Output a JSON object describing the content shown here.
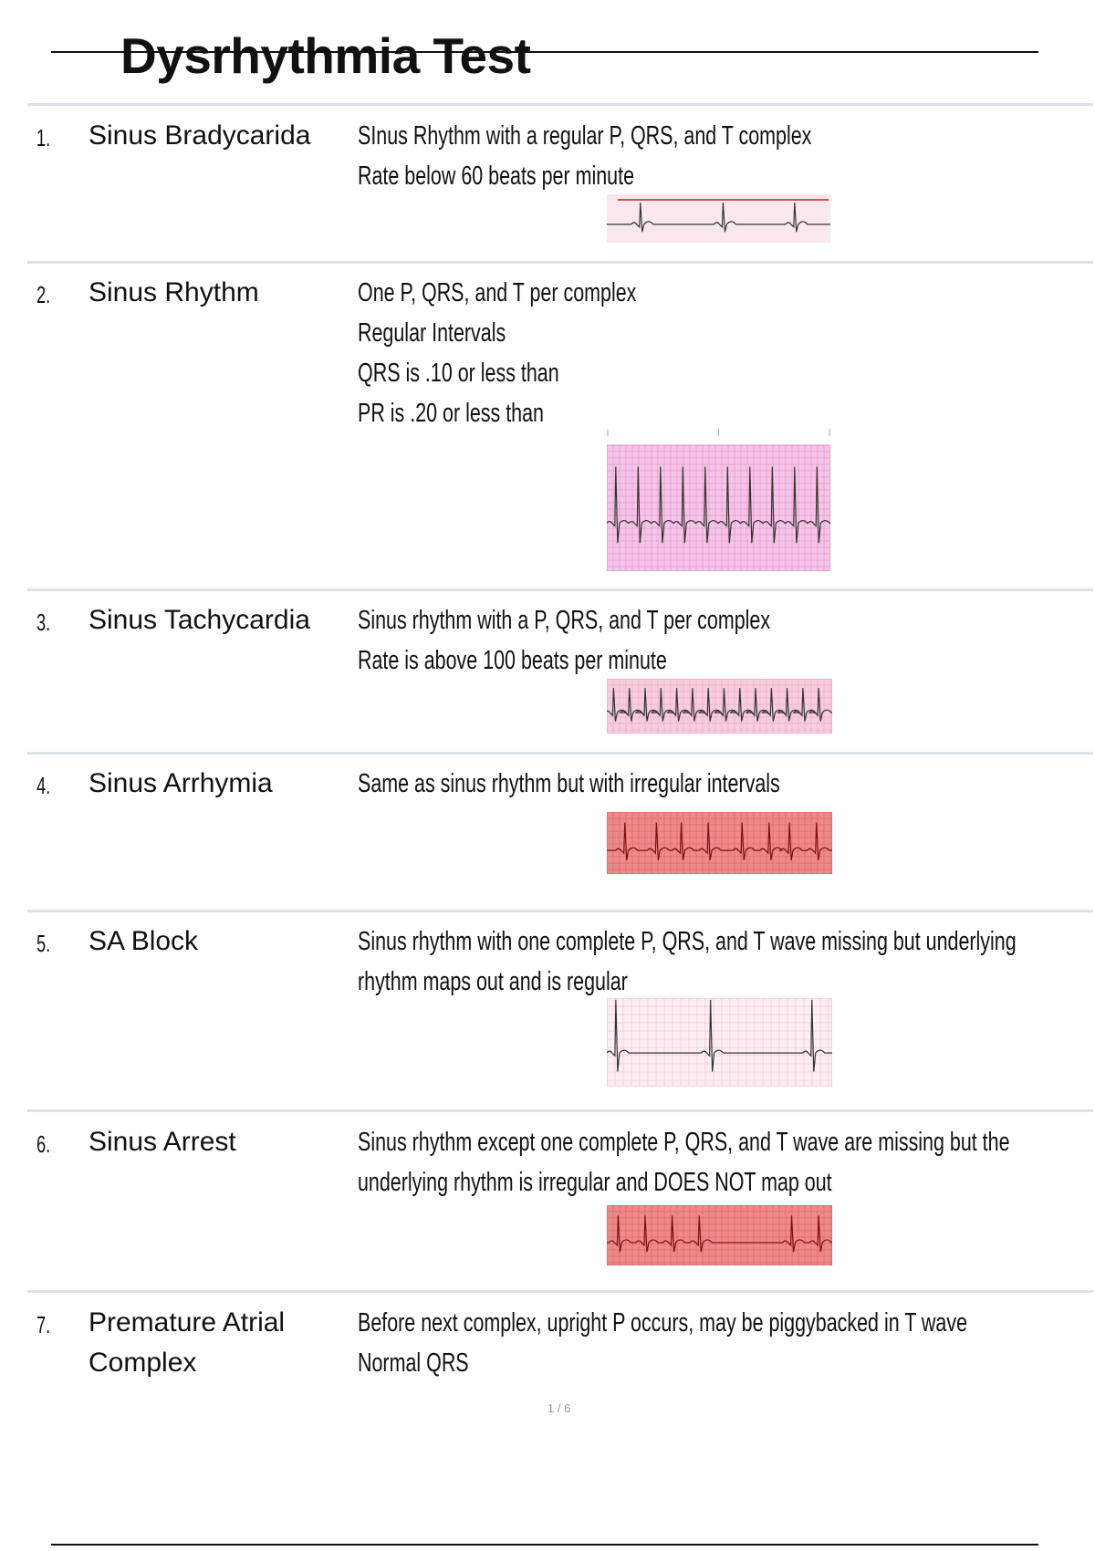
{
  "title": "Dysrhythmia Test",
  "items": [
    {
      "number": "1.",
      "name": "Sinus Bradycarida",
      "lines": [
        "SInus Rhythm with a regular P, QRS, and T complex",
        "Rate below 60 beats per minute"
      ]
    },
    {
      "number": "2.",
      "name": "Sinus Rhythm",
      "lines": [
        "One P, QRS, and T per complex",
        "Regular Intervals",
        "QRS is .10 or less than",
        "PR is .20 or less than"
      ]
    },
    {
      "number": "3.",
      "name": "Sinus Tachycardia",
      "lines": [
        "Sinus rhythm with a P, QRS, and T per complex",
        "Rate is above 100 beats per minute"
      ]
    },
    {
      "number": "4.",
      "name": "Sinus Arrhymia",
      "lines": [
        "Same as sinus rhythm but with irregular intervals"
      ]
    },
    {
      "number": "5.",
      "name": "SA Block",
      "lines": [
        "Sinus rhythm with one complete P, QRS, and T wave missing but underlying",
        "rhythm maps out and is regular"
      ]
    },
    {
      "number": "6.",
      "name": "Sinus Arrest",
      "lines": [
        "Sinus rhythm except one complete P, QRS, and T wave are missing but the",
        "underlying rhythm is irregular and DOES NOT map out"
      ]
    },
    {
      "number": "7.",
      "name_lines": [
        "Premature Atrial",
        "Complex"
      ],
      "lines": [
        "Before next complex, upright P occurs, may be piggybacked in T wave",
        "Normal QRS"
      ]
    }
  ],
  "page_indicator": "1 / 6",
  "colors": {
    "separator": "#dde1e8",
    "ecg_pale_bg": "#fbe8ec",
    "ecg_pink_bg": "#f6c4e6",
    "ecg_red_bg": "#ee8a8a",
    "ecg_trace": "#333333"
  }
}
